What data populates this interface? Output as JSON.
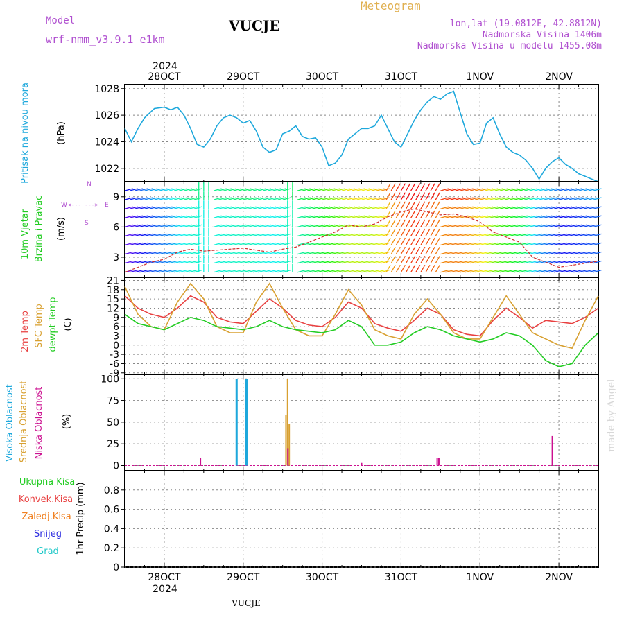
{
  "header": {
    "model_label": "Model",
    "model_name": "wrf-nmm_v3.9.1  e1km",
    "station": "VUCJE",
    "product": "Meteogram",
    "coords": "lon,lat (19.0812E, 42.8812N)",
    "elevation": "Nadmorska Visina 1406m",
    "model_elevation": "Nadmorska Visina u modelu 1455.08m",
    "watermark": "made by Angel",
    "footer_station": "VUCJE"
  },
  "time_axis": {
    "year": "2024",
    "days": [
      "28OCT",
      "29OCT",
      "30OCT",
      "31OCT",
      "1NOV",
      "2NOV"
    ],
    "day_positions_hours": [
      12,
      36,
      60,
      84,
      108,
      132
    ],
    "range_hours": [
      0,
      144
    ]
  },
  "colors": {
    "pressure": "#1ea8dc",
    "wind_label": "#22cc22",
    "temp2m": "#e84040",
    "sfc_temp": "#d8a030",
    "dewpoint": "#22cc22",
    "high_cloud": "#1ea8dc",
    "mid_cloud": "#d8a030",
    "low_cloud": "#cc1090",
    "total_precip": "#22cc22",
    "conv_precip": "#e84040",
    "frz_precip": "#f08020",
    "snow": "#3030e0",
    "graupel": "#20c8c8",
    "header_purple": "#b050d0",
    "meteogram_orange": "#e0b050"
  },
  "panels": {
    "pressure": {
      "labels": [
        "Pritisak na nivou mora"
      ],
      "unit": "(hPa)"
    },
    "wind": {
      "labels": [
        "10m Vjetar",
        "Brzina i Pravac"
      ],
      "unit": "(m/s)",
      "compass": {
        "w": "W",
        "e": "E",
        "n": "N",
        "s": "S"
      }
    },
    "temp": {
      "labels": [
        "2m Temp",
        "SFC Temp",
        "dewpt Temp"
      ],
      "unit": "(C)"
    },
    "cloud": {
      "labels": [
        "Visoka Oblacnost",
        "Srednja Oblacnost",
        "Niska Oblacnost"
      ],
      "unit": "(%)"
    },
    "precip": {
      "labels": [
        "Ukupna Kisa",
        "Konvek.Kisa",
        "Zaledj.Kisa",
        "Snijeg",
        "Grad"
      ],
      "unit": "1hr Precip (mm)"
    }
  },
  "chart_data": [
    {
      "type": "line",
      "id": "pressure",
      "ylabel": "(hPa)",
      "ylim": [
        1021,
        1028.3
      ],
      "yticks": [
        1022,
        1024,
        1026,
        1028
      ],
      "grid": true,
      "series": [
        {
          "name": "Pritisak na nivou mora",
          "x": [
            0,
            2,
            4,
            6,
            9,
            12,
            14,
            16,
            18,
            20,
            22,
            24,
            26,
            28,
            30,
            32,
            34,
            36,
            38,
            40,
            42,
            44,
            46,
            48,
            50,
            52,
            54,
            56,
            58,
            60,
            62,
            64,
            66,
            68,
            70,
            72,
            74,
            76,
            78,
            80,
            82,
            84,
            86,
            88,
            90,
            92,
            94,
            96,
            98,
            100,
            102,
            104,
            106,
            108,
            110,
            112,
            114,
            116,
            118,
            120,
            122,
            124,
            126,
            128,
            130,
            132,
            134,
            136,
            138,
            140,
            142,
            144
          ],
          "y": [
            1025,
            1024,
            1025,
            1025.8,
            1026.5,
            1026.6,
            1026.4,
            1026.6,
            1026,
            1025,
            1023.8,
            1023.6,
            1024.2,
            1025.2,
            1025.8,
            1026,
            1025.8,
            1025.4,
            1025.6,
            1024.8,
            1023.6,
            1023.2,
            1023.4,
            1024.6,
            1024.8,
            1025.2,
            1024.4,
            1024.2,
            1024.3,
            1023.6,
            1022.2,
            1022.4,
            1023,
            1024.2,
            1024.6,
            1025,
            1025,
            1025.2,
            1026,
            1025,
            1024,
            1023.6,
            1024.6,
            1025.6,
            1026.4,
            1027,
            1027.4,
            1027.2,
            1027.6,
            1027.8,
            1026.2,
            1024.6,
            1023.8,
            1023.9,
            1025.4,
            1025.8,
            1024.6,
            1023.6,
            1023.2,
            1023,
            1022.6,
            1022,
            1021.2,
            1022,
            1022.5,
            1022.8,
            1022.3,
            1022,
            1021.6,
            1021.4,
            1021.2,
            1021
          ]
        }
      ]
    },
    {
      "type": "line",
      "id": "wind",
      "ylabel": "(m/s)",
      "ylim": [
        1,
        10.5
      ],
      "yticks": [
        3,
        6,
        9
      ],
      "grid": true,
      "series": [
        {
          "name": "10m Vjetar",
          "x": [
            0,
            4,
            8,
            12,
            16,
            20,
            24,
            28,
            32,
            36,
            40,
            44,
            48,
            52,
            56,
            60,
            64,
            68,
            72,
            76,
            80,
            84,
            88,
            92,
            96,
            100,
            104,
            108,
            112,
            116,
            120,
            124,
            128,
            132,
            136,
            140,
            144
          ],
          "y": [
            1.5,
            2,
            2.5,
            2.8,
            3.5,
            3.8,
            3.6,
            3.7,
            3.8,
            3.9,
            3.7,
            3.5,
            3.8,
            4,
            4.5,
            5,
            5.5,
            6.2,
            6,
            6.3,
            7,
            7.5,
            7.8,
            7.5,
            7.2,
            7.3,
            7,
            6.5,
            5.5,
            5,
            4.5,
            3,
            2.5,
            2,
            2.2,
            2.4,
            2.6
          ]
        }
      ]
    },
    {
      "type": "line",
      "id": "temp",
      "ylabel": "(C)",
      "ylim": [
        -9.5,
        22
      ],
      "yticks": [
        -9,
        -6,
        -3,
        0,
        3,
        6,
        9,
        12,
        15,
        18,
        21
      ],
      "grid": true,
      "series": [
        {
          "name": "2m Temp",
          "x": [
            0,
            4,
            8,
            12,
            16,
            20,
            24,
            28,
            32,
            36,
            40,
            44,
            48,
            52,
            56,
            60,
            64,
            68,
            72,
            76,
            80,
            84,
            88,
            92,
            96,
            100,
            104,
            108,
            112,
            116,
            120,
            124,
            128,
            132,
            136,
            140,
            144
          ],
          "y": [
            16,
            12,
            10,
            9,
            12,
            16,
            14,
            9,
            7.5,
            7,
            11,
            15,
            12,
            8,
            6.5,
            6,
            9,
            14,
            12,
            7,
            5.5,
            4.5,
            8,
            12,
            10,
            5,
            3.5,
            3,
            8,
            12,
            9,
            5.5,
            8,
            7.5,
            7,
            9,
            12
          ]
        },
        {
          "name": "SFC Temp",
          "x": [
            0,
            4,
            8,
            12,
            16,
            20,
            24,
            28,
            32,
            36,
            40,
            44,
            48,
            52,
            56,
            60,
            64,
            68,
            72,
            76,
            80,
            84,
            88,
            92,
            96,
            100,
            104,
            108,
            112,
            116,
            120,
            124,
            128,
            132,
            136,
            140,
            144
          ],
          "y": [
            19,
            10,
            6,
            5,
            14,
            20,
            15,
            6,
            4,
            4,
            14,
            20,
            12,
            5,
            3,
            3,
            10,
            18,
            13,
            5,
            3,
            2,
            10,
            15,
            10,
            4,
            2,
            2,
            9,
            16,
            10,
            4,
            2,
            0,
            -1,
            8,
            16
          ]
        },
        {
          "name": "dewpt Temp",
          "x": [
            0,
            4,
            8,
            12,
            16,
            20,
            24,
            28,
            32,
            36,
            40,
            44,
            48,
            52,
            56,
            60,
            64,
            68,
            72,
            76,
            80,
            84,
            88,
            92,
            96,
            100,
            104,
            108,
            112,
            116,
            120,
            124,
            128,
            132,
            136,
            140,
            144
          ],
          "y": [
            10,
            7,
            6,
            5,
            7,
            9,
            8,
            6,
            5.5,
            5,
            6,
            8,
            6,
            5,
            4.5,
            4,
            5,
            8,
            6,
            0,
            0,
            1,
            4,
            6,
            5,
            3,
            2,
            1,
            2,
            4,
            3,
            0,
            -5,
            -7,
            -6,
            0,
            4
          ]
        }
      ]
    },
    {
      "type": "bar",
      "id": "cloud",
      "ylabel": "(%)",
      "ylim": [
        -6,
        105
      ],
      "yticks": [
        0,
        25,
        50,
        75,
        100
      ],
      "grid": true,
      "series": [
        {
          "name": "Visoka Oblacnost",
          "x": [
            34,
            37
          ],
          "y": [
            100,
            100
          ]
        },
        {
          "name": "Srednja Oblacnost",
          "x": [
            49,
            49.5,
            50
          ],
          "y": [
            58,
            100,
            48
          ]
        },
        {
          "name": "Niska Oblacnost",
          "x": [
            23,
            49.6,
            72,
            95,
            95.5,
            130
          ],
          "y": [
            9,
            20,
            3,
            9,
            9,
            34
          ]
        }
      ]
    },
    {
      "type": "bar",
      "id": "precip",
      "ylabel": "1hr Precip (mm)",
      "ylim": [
        0,
        1
      ],
      "yticks": [
        0,
        0.2,
        0.4,
        0.6,
        0.8
      ],
      "grid": true,
      "series": [
        {
          "name": "Ukupna Kisa",
          "x": [],
          "y": []
        },
        {
          "name": "Konvek.Kisa",
          "x": [],
          "y": []
        },
        {
          "name": "Zaledj.Kisa",
          "x": [],
          "y": []
        },
        {
          "name": "Snijeg",
          "x": [],
          "y": []
        },
        {
          "name": "Grad",
          "x": [],
          "y": []
        }
      ]
    }
  ]
}
